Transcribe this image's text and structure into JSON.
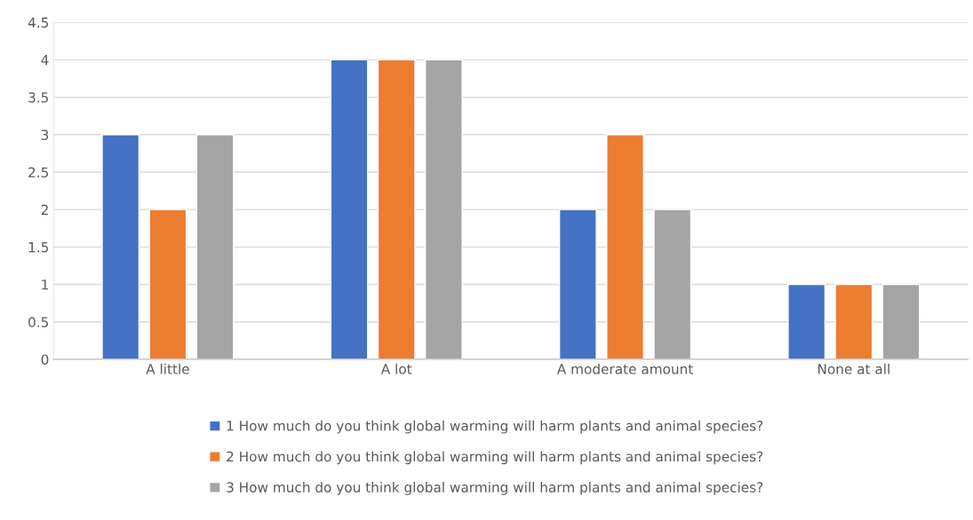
{
  "chart_data": {
    "type": "bar",
    "categories": [
      "A little",
      "A lot",
      "A moderate amount",
      "None at all"
    ],
    "series": [
      {
        "name": "1 How much do you think global warming will harm plants and animal species?",
        "color": "#4472c4",
        "values": [
          3,
          4,
          2,
          1
        ]
      },
      {
        "name": "2 How much do you think global warming will harm plants and animal species?",
        "color": "#ed7d31",
        "values": [
          2,
          4,
          3,
          1
        ]
      },
      {
        "name": "3 How much do you think global warming will harm plants and animal species?",
        "color": "#a5a5a5",
        "values": [
          3,
          4,
          2,
          1
        ]
      }
    ],
    "ylim": [
      0,
      4.5
    ],
    "yticks": [
      0,
      0.5,
      1,
      1.5,
      2,
      2.5,
      3,
      3.5,
      4,
      4.5
    ],
    "grid": "y",
    "legend": "bottom"
  }
}
